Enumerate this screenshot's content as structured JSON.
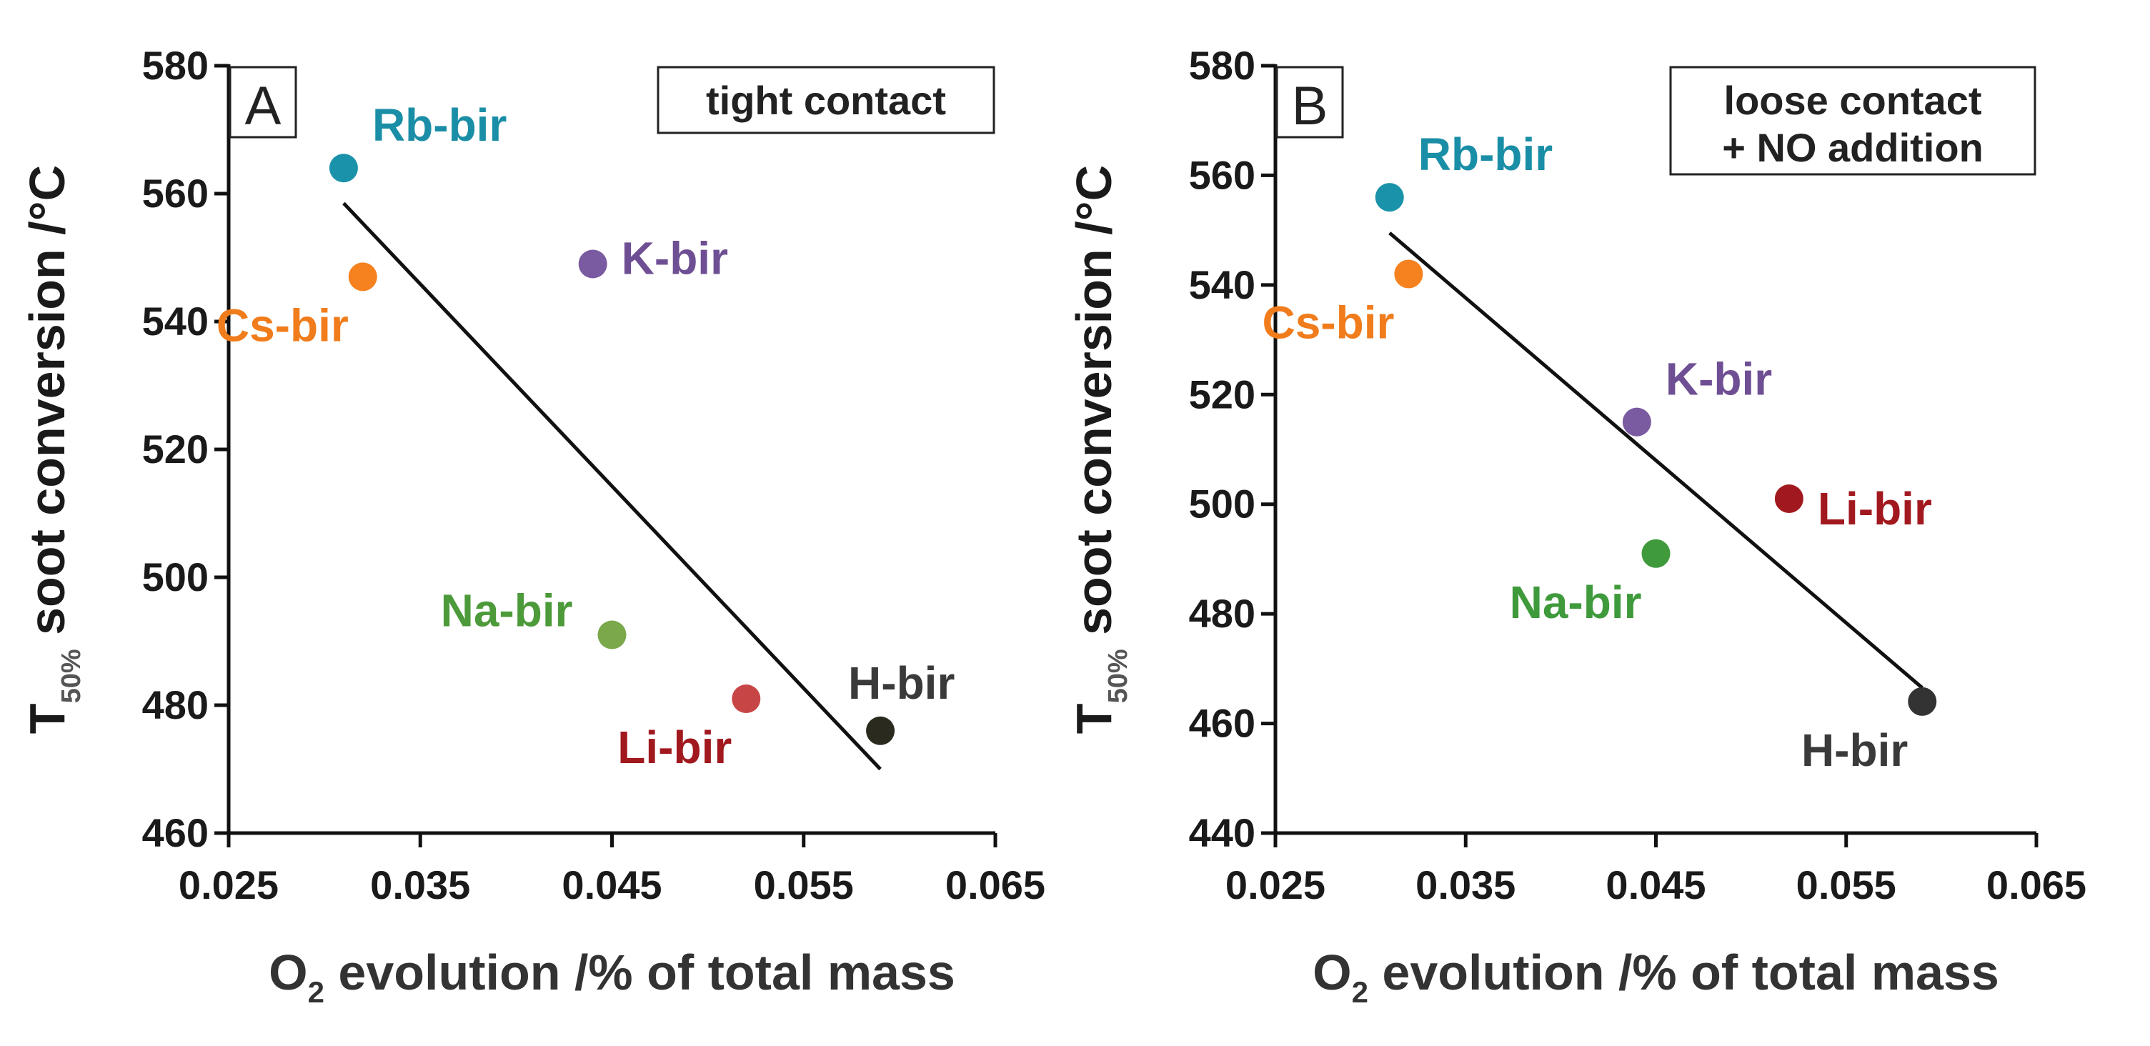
{
  "chart_data": [
    {
      "type": "scatter",
      "panel_label": "A",
      "condition": [
        "tight contact"
      ],
      "xlabel": {
        "main": "O",
        "sub": "2",
        "rest": " evolution /% of total mass"
      },
      "ylabel": {
        "main": "T",
        "sub": "50%",
        "rest": " soot conversion /°C"
      },
      "xlim": [
        0.025,
        0.065
      ],
      "ylim": [
        460,
        580
      ],
      "xticks": [
        "0.025",
        "0.035",
        "0.045",
        "0.055",
        "0.065"
      ],
      "yticks": [
        "460",
        "480",
        "500",
        "520",
        "540",
        "560",
        "580"
      ],
      "points": [
        {
          "name": "Rb-bir",
          "x": 0.031,
          "y": 564,
          "color": "#1a93aa",
          "label_color": "#1a8ea6",
          "label_pos": "upper-right"
        },
        {
          "name": "Cs-bir",
          "x": 0.032,
          "y": 547,
          "color": "#f5821f",
          "label_color": "#f07c1c",
          "label_pos": "lower-left"
        },
        {
          "name": "K-bir",
          "x": 0.044,
          "y": 549,
          "color": "#7a5aa0",
          "label_color": "#6f4f94",
          "label_pos": "right"
        },
        {
          "name": "Na-bir",
          "x": 0.045,
          "y": 491,
          "color": "#7aa84a",
          "label_color": "#4c9a3a",
          "label_pos": "upper-left"
        },
        {
          "name": "Li-bir",
          "x": 0.052,
          "y": 481,
          "color": "#c84546",
          "label_color": "#a1191e",
          "label_pos": "lower-left"
        },
        {
          "name": "H-bir",
          "x": 0.059,
          "y": 476,
          "color": "#2a2a1e",
          "label_color": "#3a3a3a",
          "label_pos": "above"
        }
      ],
      "fit_line": {
        "x1": 0.031,
        "y1": 558.5,
        "x2": 0.059,
        "y2": 470
      }
    },
    {
      "type": "scatter",
      "panel_label": "B",
      "condition": [
        "loose contact",
        "+ NO addition"
      ],
      "xlabel": {
        "main": "O",
        "sub": "2",
        "rest": " evolution /% of total mass"
      },
      "ylabel": {
        "main": "T",
        "sub": "50%",
        "rest": " soot conversion /°C"
      },
      "xlim": [
        0.025,
        0.065
      ],
      "ylim": [
        440,
        580
      ],
      "xticks": [
        "0.025",
        "0.035",
        "0.045",
        "0.055",
        "0.065"
      ],
      "yticks": [
        "440",
        "460",
        "480",
        "500",
        "520",
        "540",
        "560",
        "580"
      ],
      "points": [
        {
          "name": "Rb-bir",
          "x": 0.031,
          "y": 556,
          "color": "#1a93aa",
          "label_color": "#1a8ea6",
          "label_pos": "upper-right"
        },
        {
          "name": "Cs-bir",
          "x": 0.032,
          "y": 542,
          "color": "#f5821f",
          "label_color": "#f07c1c",
          "label_pos": "lower-left"
        },
        {
          "name": "K-bir",
          "x": 0.044,
          "y": 515,
          "color": "#7a5aa0",
          "label_color": "#6f4f94",
          "label_pos": "upper-right"
        },
        {
          "name": "Li-bir",
          "x": 0.052,
          "y": 501,
          "color": "#a1191e",
          "label_color": "#a1191e",
          "label_pos": "lower-right"
        },
        {
          "name": "Na-bir",
          "x": 0.045,
          "y": 491,
          "color": "#3f9a3c",
          "label_color": "#3f9a3c",
          "label_pos": "lower-left"
        },
        {
          "name": "H-bir",
          "x": 0.059,
          "y": 464,
          "color": "#333333",
          "label_color": "#3a3a3a",
          "label_pos": "lower-left"
        }
      ],
      "fit_line": {
        "x1": 0.031,
        "y1": 549.5,
        "x2": 0.059,
        "y2": 466.5
      }
    }
  ]
}
